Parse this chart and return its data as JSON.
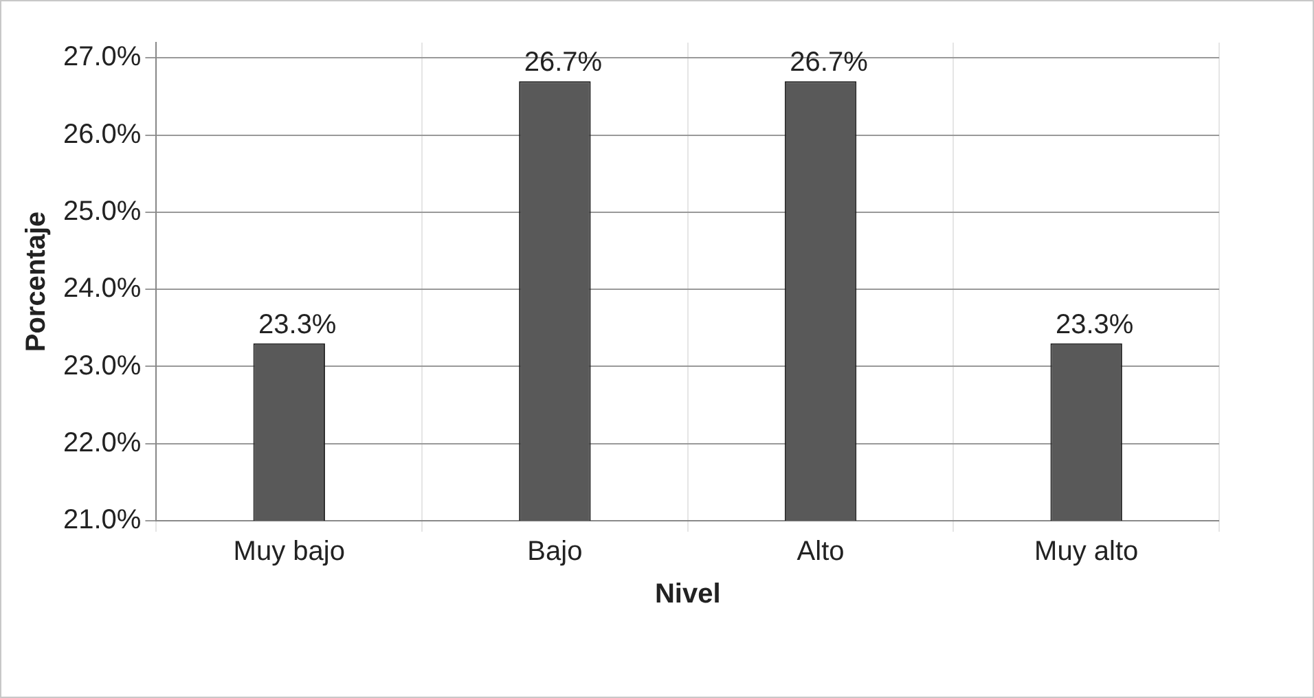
{
  "chart_data": {
    "type": "bar",
    "xlabel": "Nivel",
    "ylabel": "Porcentaje",
    "categories": [
      "Muy bajo",
      "Bajo",
      "Alto",
      "Muy alto"
    ],
    "values": [
      23.3,
      26.7,
      26.7,
      23.3
    ],
    "color": "#595959",
    "value_labels": [
      "23.3%",
      "26.7%",
      "26.7%",
      "23.3%"
    ],
    "ylim": [
      21,
      27.2
    ],
    "yticks": [
      {
        "value": 21,
        "label": "21.0%"
      },
      {
        "value": 22,
        "label": "22.0%"
      },
      {
        "value": 23,
        "label": "23.0%"
      },
      {
        "value": 24,
        "label": "24.0%"
      },
      {
        "value": 25,
        "label": "25.0%"
      },
      {
        "value": 26,
        "label": "26.0%"
      },
      {
        "value": 27,
        "label": "27.0%"
      }
    ],
    "grid": true
  }
}
